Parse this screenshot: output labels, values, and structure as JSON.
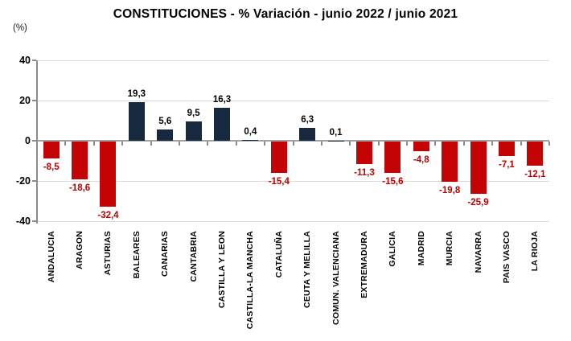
{
  "title": "CONSTITUCIONES - % Variación - junio 2022 / junio 2021",
  "y_axis_unit": "(%)",
  "chart_data": {
    "type": "bar",
    "title": "CONSTITUCIONES - % Variación - junio 2022 / junio 2021",
    "ylabel": "(%)",
    "xlabel": "",
    "categories": [
      "ANDALUCIA",
      "ARAGON",
      "ASTURIAS",
      "BALEARES",
      "CANARIAS",
      "CANTABRIA",
      "CASTILLA Y LEON",
      "CASTILLA-LA MANCHA",
      "CATALUÑA",
      "CEUTA Y MELILLA",
      "COMUN. VALENCIANA",
      "EXTREMADURA",
      "GALICIA",
      "MADRID",
      "MURCIA",
      "NAVARRA",
      "PAIS VASCO",
      "LA RIOJA"
    ],
    "values": [
      -8.5,
      -18.6,
      -32.4,
      19.3,
      5.6,
      9.5,
      16.3,
      0.4,
      -15.4,
      6.3,
      0.1,
      -11.3,
      -15.6,
      -4.8,
      -19.8,
      -25.9,
      -7.1,
      -12.1
    ],
    "value_labels": [
      "-8,5",
      "-18,6",
      "-32,4",
      "19,3",
      "5,6",
      "9,5",
      "16,3",
      "0,4",
      "-15,4",
      "6,3",
      "0,1",
      "-11,3",
      "-15,6",
      "-4,8",
      "-19,8",
      "-25,9",
      "-7,1",
      "-12,1"
    ],
    "ylim": [
      -40,
      40
    ],
    "y_ticks": [
      40,
      20,
      0,
      -20,
      -40
    ],
    "y_tick_labels": [
      "40",
      "20",
      "0",
      "-20",
      "-40"
    ],
    "grid": true,
    "legend": "none",
    "colors": {
      "positive_bar": "#17293e",
      "negative_bar": "#c40404",
      "positive_value_label": "#000000",
      "negative_value_label": "#c00000",
      "gridline": "#d9d9d9",
      "zero_line": "#a3a3a3",
      "axis": "#8c8c8c"
    }
  }
}
